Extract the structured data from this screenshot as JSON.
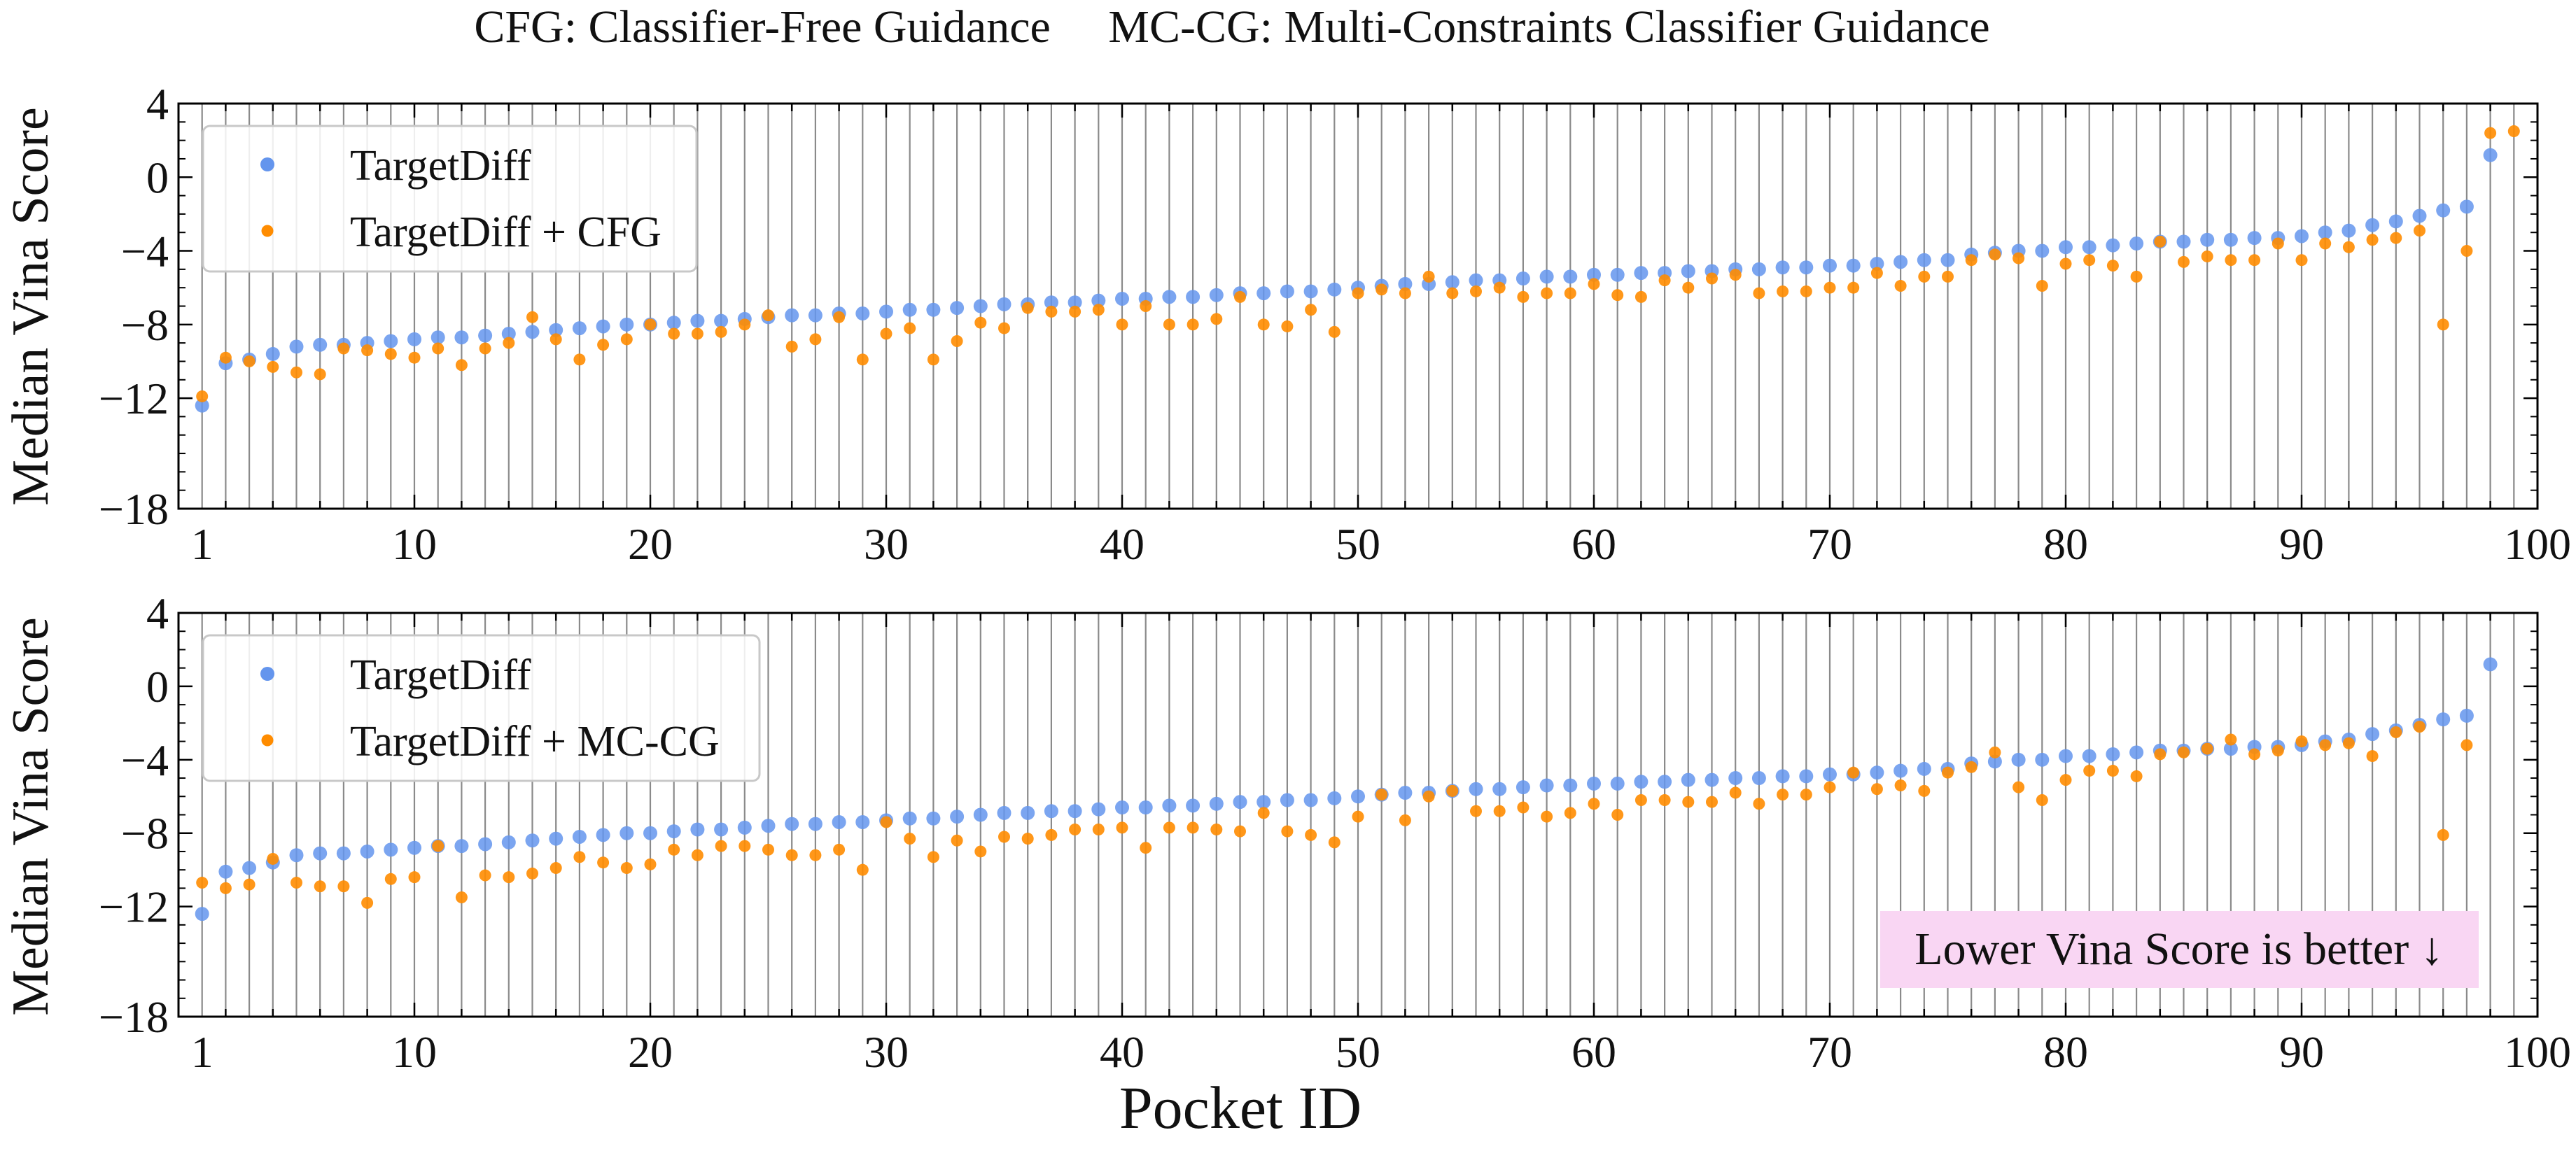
{
  "title": "CFG: Classifier-Free Guidance     MC-CG: Multi-Constraints Classifier Guidance",
  "xlabel": "Pocket ID",
  "annotation": "Lower Vina Score is better ↓",
  "colors": {
    "baseline": "#6495ed",
    "guided": "#ff8c00",
    "annotation_bg": "#f9d6f3",
    "grid": "#8a8a8a"
  },
  "chart_data": [
    {
      "type": "scatter",
      "ylabel": "Median Vina Score",
      "xlim": [
        0,
        100
      ],
      "ylim": [
        -18,
        4
      ],
      "xticks": [
        1,
        10,
        20,
        30,
        40,
        50,
        60,
        70,
        80,
        90,
        100
      ],
      "yticks": [
        4,
        0,
        -4,
        -8,
        -12,
        -18
      ],
      "ytick_labels": [
        "4",
        "0",
        "−4",
        "−8",
        "−12",
        "−18"
      ],
      "grid": "vertical",
      "legend": "top-left",
      "series": [
        {
          "name": "TargetDiff",
          "color": "#6495ed",
          "x": [
            1,
            2,
            3,
            4,
            5,
            6,
            7,
            8,
            9,
            10,
            11,
            12,
            13,
            14,
            15,
            16,
            17,
            18,
            19,
            20,
            21,
            22,
            23,
            24,
            25,
            26,
            27,
            28,
            29,
            30,
            31,
            32,
            33,
            34,
            35,
            36,
            37,
            38,
            39,
            40,
            41,
            42,
            43,
            44,
            45,
            46,
            47,
            48,
            49,
            50,
            51,
            52,
            53,
            54,
            55,
            56,
            57,
            58,
            59,
            60,
            61,
            62,
            63,
            64,
            65,
            66,
            67,
            68,
            69,
            70,
            71,
            72,
            73,
            74,
            75,
            76,
            77,
            78,
            79,
            80,
            81,
            82,
            83,
            84,
            85,
            86,
            87,
            88,
            89,
            90,
            91,
            92,
            93,
            94,
            95,
            96,
            97,
            98
          ],
          "y": [
            -12.4,
            -10.1,
            -9.9,
            -9.6,
            -9.2,
            -9.1,
            -9.1,
            -9.0,
            -8.9,
            -8.8,
            -8.7,
            -8.7,
            -8.6,
            -8.5,
            -8.4,
            -8.3,
            -8.2,
            -8.1,
            -8.0,
            -8.0,
            -7.9,
            -7.8,
            -7.8,
            -7.7,
            -7.6,
            -7.5,
            -7.5,
            -7.4,
            -7.4,
            -7.3,
            -7.2,
            -7.2,
            -7.1,
            -7.0,
            -6.9,
            -6.9,
            -6.8,
            -6.8,
            -6.7,
            -6.6,
            -6.6,
            -6.5,
            -6.5,
            -6.4,
            -6.3,
            -6.3,
            -6.2,
            -6.2,
            -6.1,
            -6.0,
            -5.9,
            -5.8,
            -5.8,
            -5.7,
            -5.6,
            -5.6,
            -5.5,
            -5.4,
            -5.4,
            -5.3,
            -5.3,
            -5.2,
            -5.2,
            -5.1,
            -5.1,
            -5.0,
            -5.0,
            -4.9,
            -4.9,
            -4.8,
            -4.8,
            -4.7,
            -4.6,
            -4.5,
            -4.5,
            -4.2,
            -4.1,
            -4.0,
            -4.0,
            -3.8,
            -3.8,
            -3.7,
            -3.6,
            -3.5,
            -3.5,
            -3.4,
            -3.4,
            -3.3,
            -3.3,
            -3.2,
            -3.0,
            -2.9,
            -2.6,
            -2.4,
            -2.1,
            -1.8,
            -1.6,
            1.2
          ]
        },
        {
          "name": "TargetDiff + CFG",
          "color": "#ff8c00",
          "x": [
            1,
            2,
            3,
            4,
            5,
            6,
            7,
            8,
            9,
            10,
            11,
            12,
            13,
            14,
            15,
            16,
            17,
            18,
            19,
            20,
            21,
            22,
            23,
            24,
            25,
            26,
            27,
            28,
            29,
            30,
            31,
            32,
            33,
            34,
            35,
            36,
            37,
            38,
            39,
            40,
            41,
            42,
            43,
            44,
            45,
            46,
            47,
            48,
            49,
            50,
            51,
            52,
            53,
            54,
            55,
            56,
            57,
            58,
            59,
            60,
            61,
            62,
            63,
            64,
            65,
            66,
            67,
            68,
            69,
            70,
            71,
            72,
            73,
            74,
            75,
            76,
            77,
            78,
            79,
            80,
            81,
            82,
            83,
            84,
            85,
            86,
            87,
            88,
            89,
            90,
            91,
            92,
            93,
            94,
            95,
            96,
            97,
            98,
            99
          ],
          "y": [
            -11.9,
            -9.8,
            -10.0,
            -10.3,
            -10.6,
            -10.7,
            -9.3,
            -9.4,
            -9.6,
            -9.8,
            -9.3,
            -10.2,
            -9.3,
            -9.0,
            -7.6,
            -8.8,
            -9.9,
            -9.1,
            -8.8,
            -8.0,
            -8.5,
            -8.5,
            -8.4,
            -8.0,
            -7.5,
            -9.2,
            -8.8,
            -7.6,
            -9.9,
            -8.5,
            -8.2,
            -9.9,
            -8.9,
            -7.9,
            -8.2,
            -7.1,
            -7.3,
            -7.3,
            -7.2,
            -8.0,
            -7.0,
            -8.0,
            -8.0,
            -7.7,
            -6.5,
            -8.0,
            -8.1,
            -7.2,
            -8.4,
            -6.3,
            -6.1,
            -6.3,
            -5.4,
            -6.3,
            -6.2,
            -6.0,
            -6.5,
            -6.3,
            -6.3,
            -5.8,
            -6.4,
            -6.5,
            -5.6,
            -6.0,
            -5.5,
            -5.3,
            -6.3,
            -6.2,
            -6.2,
            -6.0,
            -6.0,
            -5.2,
            -5.9,
            -5.4,
            -5.4,
            -4.5,
            -4.2,
            -4.4,
            -5.9,
            -4.7,
            -4.5,
            -4.8,
            -5.4,
            -3.5,
            -4.6,
            -4.3,
            -4.5,
            -4.5,
            -3.6,
            -4.5,
            -3.6,
            -3.8,
            -3.4,
            -3.3,
            -2.9,
            -8.0,
            -4.0,
            2.4,
            2.5
          ]
        }
      ]
    },
    {
      "type": "scatter",
      "ylabel": "Median Vina Score",
      "xlim": [
        0,
        100
      ],
      "ylim": [
        -18,
        4
      ],
      "xticks": [
        1,
        10,
        20,
        30,
        40,
        50,
        60,
        70,
        80,
        90,
        100
      ],
      "yticks": [
        4,
        0,
        -4,
        -8,
        -12,
        -18
      ],
      "ytick_labels": [
        "4",
        "0",
        "−4",
        "−8",
        "−12",
        "−18"
      ],
      "grid": "vertical",
      "legend": "top-left",
      "series": [
        {
          "name": "TargetDiff",
          "color": "#6495ed",
          "x": [
            1,
            2,
            3,
            4,
            5,
            6,
            7,
            8,
            9,
            10,
            11,
            12,
            13,
            14,
            15,
            16,
            17,
            18,
            19,
            20,
            21,
            22,
            23,
            24,
            25,
            26,
            27,
            28,
            29,
            30,
            31,
            32,
            33,
            34,
            35,
            36,
            37,
            38,
            39,
            40,
            41,
            42,
            43,
            44,
            45,
            46,
            47,
            48,
            49,
            50,
            51,
            52,
            53,
            54,
            55,
            56,
            57,
            58,
            59,
            60,
            61,
            62,
            63,
            64,
            65,
            66,
            67,
            68,
            69,
            70,
            71,
            72,
            73,
            74,
            75,
            76,
            77,
            78,
            79,
            80,
            81,
            82,
            83,
            84,
            85,
            86,
            87,
            88,
            89,
            90,
            91,
            92,
            93,
            94,
            95,
            96,
            97,
            98
          ],
          "y": [
            -12.4,
            -10.1,
            -9.9,
            -9.6,
            -9.2,
            -9.1,
            -9.1,
            -9.0,
            -8.9,
            -8.8,
            -8.7,
            -8.7,
            -8.6,
            -8.5,
            -8.4,
            -8.3,
            -8.2,
            -8.1,
            -8.0,
            -8.0,
            -7.9,
            -7.8,
            -7.8,
            -7.7,
            -7.6,
            -7.5,
            -7.5,
            -7.4,
            -7.4,
            -7.3,
            -7.2,
            -7.2,
            -7.1,
            -7.0,
            -6.9,
            -6.9,
            -6.8,
            -6.8,
            -6.7,
            -6.6,
            -6.6,
            -6.5,
            -6.5,
            -6.4,
            -6.3,
            -6.3,
            -6.2,
            -6.2,
            -6.1,
            -6.0,
            -5.9,
            -5.8,
            -5.8,
            -5.7,
            -5.6,
            -5.6,
            -5.5,
            -5.4,
            -5.4,
            -5.3,
            -5.3,
            -5.2,
            -5.2,
            -5.1,
            -5.1,
            -5.0,
            -5.0,
            -4.9,
            -4.9,
            -4.8,
            -4.8,
            -4.7,
            -4.6,
            -4.5,
            -4.5,
            -4.2,
            -4.1,
            -4.0,
            -4.0,
            -3.8,
            -3.8,
            -3.7,
            -3.6,
            -3.5,
            -3.5,
            -3.4,
            -3.4,
            -3.3,
            -3.3,
            -3.2,
            -3.0,
            -2.9,
            -2.6,
            -2.4,
            -2.1,
            -1.8,
            -1.6,
            1.2
          ]
        },
        {
          "name": "TargetDiff + MC-CG",
          "color": "#ff8c00",
          "x": [
            1,
            2,
            3,
            4,
            5,
            6,
            7,
            8,
            9,
            10,
            11,
            12,
            13,
            14,
            15,
            16,
            17,
            18,
            19,
            20,
            21,
            22,
            23,
            24,
            25,
            26,
            27,
            28,
            29,
            30,
            31,
            32,
            33,
            34,
            35,
            36,
            37,
            38,
            39,
            40,
            41,
            42,
            43,
            44,
            45,
            46,
            47,
            48,
            49,
            50,
            51,
            52,
            53,
            54,
            55,
            56,
            57,
            58,
            59,
            60,
            61,
            62,
            63,
            64,
            65,
            66,
            67,
            68,
            69,
            70,
            71,
            72,
            73,
            74,
            75,
            76,
            77,
            78,
            79,
            80,
            81,
            82,
            83,
            84,
            85,
            86,
            87,
            88,
            89,
            90,
            91,
            92,
            93,
            94,
            95,
            96,
            97
          ],
          "y": [
            -10.7,
            -11.0,
            -10.8,
            -9.4,
            -10.7,
            -10.9,
            -10.9,
            -11.8,
            -10.5,
            -10.4,
            -8.7,
            -11.5,
            -10.3,
            -10.4,
            -10.2,
            -9.9,
            -9.3,
            -9.6,
            -9.9,
            -9.7,
            -8.9,
            -9.2,
            -8.7,
            -8.7,
            -8.9,
            -9.2,
            -9.2,
            -8.9,
            -10.0,
            -7.4,
            -8.3,
            -9.3,
            -8.4,
            -9.0,
            -8.2,
            -8.3,
            -8.1,
            -7.8,
            -7.8,
            -7.7,
            -8.8,
            -7.7,
            -7.7,
            -7.8,
            -7.9,
            -6.9,
            -7.9,
            -8.1,
            -8.5,
            -7.1,
            -5.9,
            -7.3,
            -6.0,
            -5.7,
            -6.8,
            -6.8,
            -6.6,
            -7.1,
            -6.9,
            -6.4,
            -7.0,
            -6.2,
            -6.2,
            -6.3,
            -6.3,
            -5.8,
            -6.4,
            -5.9,
            -5.9,
            -5.5,
            -4.7,
            -5.6,
            -5.4,
            -5.7,
            -4.7,
            -4.4,
            -3.6,
            -5.5,
            -6.2,
            -5.1,
            -4.6,
            -4.6,
            -4.9,
            -3.7,
            -3.6,
            -3.4,
            -2.9,
            -3.7,
            -3.5,
            -3.0,
            -3.2,
            -3.1,
            -3.8,
            -2.5,
            -2.2,
            -8.1,
            -3.2
          ]
        }
      ],
      "annotation_position": "bottom-right"
    }
  ]
}
